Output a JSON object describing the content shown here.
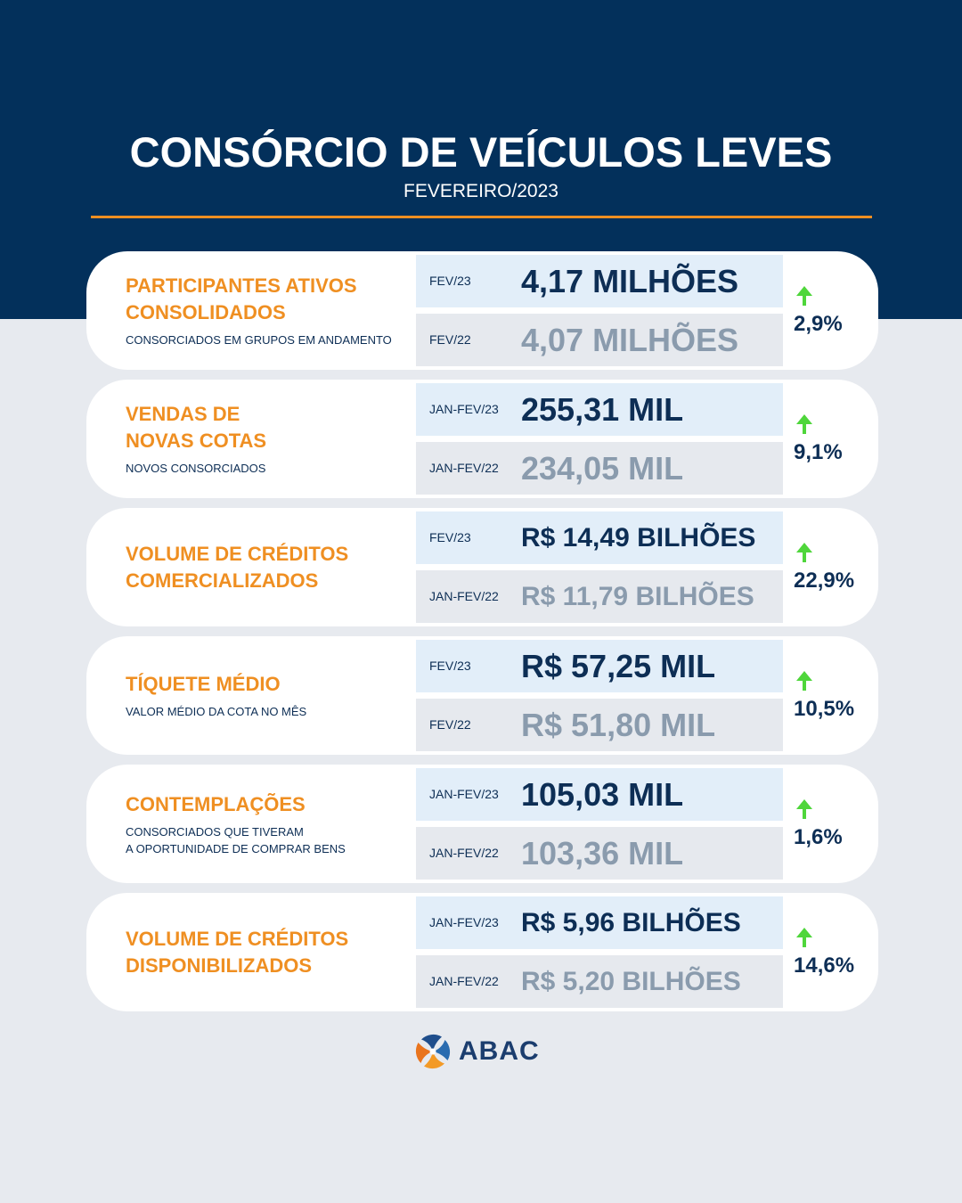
{
  "header": {
    "title": "CONSÓRCIO DE VEÍCULOS LEVES",
    "subtitle": "FEVEREIRO/2023"
  },
  "cards": [
    {
      "title_lines": [
        "PARTICIPANTES ATIVOS",
        "CONSOLIDADOS"
      ],
      "description_lines": [
        "CONSORCIADOS EM GRUPOS EM ANDAMENTO"
      ],
      "current": {
        "period": "FEV/23",
        "value": "4,17 MILHÕES"
      },
      "previous": {
        "period": "FEV/22",
        "value": "4,07 MILHÕES"
      },
      "change": "2,9%",
      "trend": "up"
    },
    {
      "title_lines": [
        "VENDAS DE",
        "NOVAS COTAS"
      ],
      "description_lines": [
        "NOVOS CONSORCIADOS"
      ],
      "current": {
        "period": "JAN-FEV/23",
        "value": "255,31 MIL"
      },
      "previous": {
        "period": "JAN-FEV/22",
        "value": "234,05 MIL"
      },
      "change": "9,1%",
      "trend": "up"
    },
    {
      "title_lines": [
        "VOLUME DE CRÉDITOS",
        "COMERCIALIZADOS"
      ],
      "description_lines": [],
      "current": {
        "period": "FEV/23",
        "value": "R$ 14,49 BILHÕES"
      },
      "previous": {
        "period": "JAN-FEV/22",
        "value": "R$ 11,79 BILHÕES"
      },
      "change": "22,9%",
      "trend": "up"
    },
    {
      "title_lines": [
        "TÍQUETE MÉDIO"
      ],
      "description_lines": [
        "VALOR MÉDIO DA COTA NO MÊS"
      ],
      "current": {
        "period": "FEV/23",
        "value": "R$ 57,25 MIL"
      },
      "previous": {
        "period": "FEV/22",
        "value": "R$ 51,80 MIL"
      },
      "change": "10,5%",
      "trend": "up"
    },
    {
      "title_lines": [
        "CONTEMPLAÇÕES"
      ],
      "description_lines": [
        "CONSORCIADOS QUE TIVERAM",
        "A OPORTUNIDADE DE COMPRAR BENS"
      ],
      "current": {
        "period": "JAN-FEV/23",
        "value": "105,03 MIL"
      },
      "previous": {
        "period": "JAN-FEV/22",
        "value": "103,36 MIL"
      },
      "change": "1,6%",
      "trend": "up"
    },
    {
      "title_lines": [
        "VOLUME DE CRÉDITOS",
        "DISPONIBILIZADOS"
      ],
      "description_lines": [],
      "current": {
        "period": "JAN-FEV/23",
        "value": "R$ 5,96 BILHÕES"
      },
      "previous": {
        "period": "JAN-FEV/22",
        "value": "R$ 5,20 BILHÕES"
      },
      "change": "14,6%",
      "trend": "up"
    }
  ],
  "logo": {
    "text": "ABAC",
    "icon": "abac-pinwheel-icon"
  },
  "icons": {
    "change": "arrow-up-icon"
  },
  "colors": {
    "header_bg": "#03305b",
    "accent": "#ef8f22",
    "navy": "#0d2e55",
    "muted_value": "#8a9bad",
    "current_row_bg": "#e2eef9",
    "previous_row_bg": "#e6e9ee",
    "page_bg": "#e7eaef",
    "card_bg": "#ffffff",
    "trend_up": "#4fd63b",
    "logo_text": "#1b3d6e"
  }
}
